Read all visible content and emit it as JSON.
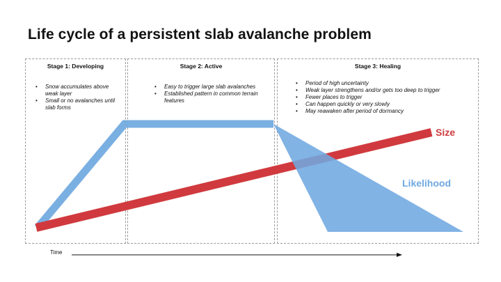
{
  "title": "Life cycle of a persistent slab avalanche problem",
  "stages": [
    {
      "title": "Stage 1: Developing",
      "bullets": [
        "Snow accumulates above weak layer",
        "Small or no avalanches until slab forms"
      ]
    },
    {
      "title": "Stage 2: Active",
      "bullets": [
        "Easy to trigger large slab avalanches",
        "Established pattern in common terrain features"
      ]
    },
    {
      "title": "Stage 3: Healing",
      "bullets": [
        "Period of high uncertainty",
        "Weak layer strengthens and/or gets too deep to trigger",
        "Fewer places to trigger",
        "Can happen quickly or very slowly",
        "May reawaken after period of dormancy"
      ]
    }
  ],
  "series": {
    "size": {
      "label": "Size",
      "color": "#d03a3e"
    },
    "likelihood": {
      "label": "Likelihood",
      "color": "#6fa8e0"
    }
  },
  "axis": {
    "x_label": "Time"
  }
}
